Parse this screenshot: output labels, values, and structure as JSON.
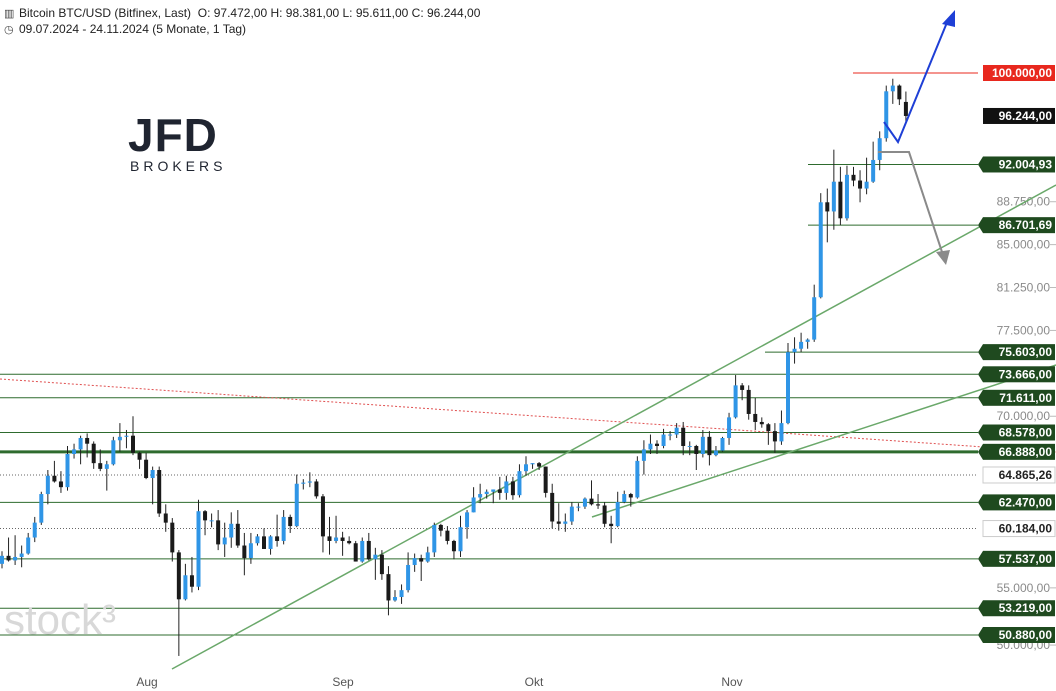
{
  "header": {
    "instrument": "Bitcoin BTC/USD (Bitfinex, Last)",
    "ohlc": "O: 97.472,00  H: 98.381,00  L: 95.611,00  C: 96.244,00",
    "period": "09.07.2024 - 24.11.2024  (5 Monate, 1 Tag)"
  },
  "logo": {
    "main": "JFD",
    "sub": "BROKERS"
  },
  "watermark": "stock³",
  "colors": {
    "up": "#2f95e6",
    "down": "#1a1a1a",
    "level": "#2e6b2e",
    "trendline": "#6aa86a",
    "resistance_dotted": "#e05050",
    "target_label": "#e8281e",
    "bullish_arrow": "#1e3fd6",
    "bearish_arrow": "#8a8a8a"
  },
  "chart_data": {
    "type": "candlestick",
    "title": "Bitcoin BTC/USD (Bitfinex, Last)",
    "x_range": [
      "09.07.2024",
      "24.11.2024"
    ],
    "xticks": [
      "Aug",
      "Sep",
      "Okt",
      "Nov"
    ],
    "ylim": [
      49500,
      110000
    ],
    "yticks": [
      {
        "value": 50000,
        "label": "50.000,00"
      },
      {
        "value": 55000,
        "label": "55.000,00"
      },
      {
        "value": 70000,
        "label": "70.000,00"
      },
      {
        "value": 77500,
        "label": "77.500,00"
      },
      {
        "value": 81250,
        "label": "81.250,00"
      },
      {
        "value": 85000,
        "label": "85.000,00"
      },
      {
        "value": 88750,
        "label": "88.750,00"
      }
    ],
    "levels": [
      {
        "value": 100000,
        "label": "100.000,00",
        "style": "target"
      },
      {
        "value": 96244,
        "label": "96.244,00",
        "style": "current"
      },
      {
        "value": 92004.93,
        "label": "92.004,93",
        "style": "solid"
      },
      {
        "value": 86701.69,
        "label": "86.701,69",
        "style": "solid"
      },
      {
        "value": 75603,
        "label": "75.603,00",
        "style": "solid"
      },
      {
        "value": 73666,
        "label": "73.666,00",
        "style": "solid"
      },
      {
        "value": 71611,
        "label": "71.611,00",
        "style": "solid"
      },
      {
        "value": 68578,
        "label": "68.578,00",
        "style": "solid"
      },
      {
        "value": 66888,
        "label": "66.888,00",
        "style": "thick"
      },
      {
        "value": 64865.26,
        "label": "64.865,26",
        "style": "dotted"
      },
      {
        "value": 62470,
        "label": "62.470,00",
        "style": "solid"
      },
      {
        "value": 60184,
        "label": "60.184,00",
        "style": "dotted"
      },
      {
        "value": 57537,
        "label": "57.537,00",
        "style": "solid"
      },
      {
        "value": 53219,
        "label": "53.219,00",
        "style": "solid"
      },
      {
        "value": 50880,
        "label": "50.880,00",
        "style": "solid"
      }
    ],
    "ohlc": [
      {
        "d": "09.07",
        "o": 57100,
        "h": 58200,
        "l": 56700,
        "c": 57800
      },
      {
        "d": "10.07",
        "o": 57800,
        "h": 59400,
        "l": 57300,
        "c": 57400
      },
      {
        "d": "11.07",
        "o": 57400,
        "h": 59600,
        "l": 57000,
        "c": 57700
      },
      {
        "d": "12.07",
        "o": 57700,
        "h": 58700,
        "l": 56800,
        "c": 58000
      },
      {
        "d": "13.07",
        "o": 58000,
        "h": 59800,
        "l": 57900,
        "c": 59400
      },
      {
        "d": "14.07",
        "o": 59400,
        "h": 61200,
        "l": 59000,
        "c": 60700
      },
      {
        "d": "15.07",
        "o": 60700,
        "h": 63400,
        "l": 60500,
        "c": 63200
      },
      {
        "d": "16.07",
        "o": 63200,
        "h": 65300,
        "l": 62300,
        "c": 64800
      },
      {
        "d": "17.07",
        "o": 64800,
        "h": 66100,
        "l": 64200,
        "c": 64300
      },
      {
        "d": "18.07",
        "o": 64300,
        "h": 65200,
        "l": 63300,
        "c": 63800
      },
      {
        "d": "19.07",
        "o": 63800,
        "h": 67400,
        "l": 63500,
        "c": 66700
      },
      {
        "d": "20.07",
        "o": 66700,
        "h": 67600,
        "l": 66300,
        "c": 67100
      },
      {
        "d": "21.07",
        "o": 67100,
        "h": 68300,
        "l": 65800,
        "c": 68100
      },
      {
        "d": "22.07",
        "o": 68100,
        "h": 68500,
        "l": 66400,
        "c": 67600
      },
      {
        "d": "23.07",
        "o": 67600,
        "h": 67800,
        "l": 65400,
        "c": 65900
      },
      {
        "d": "24.07",
        "o": 65900,
        "h": 67100,
        "l": 65200,
        "c": 65400
      },
      {
        "d": "25.07",
        "o": 65400,
        "h": 66100,
        "l": 63500,
        "c": 65800
      },
      {
        "d": "26.07",
        "o": 65800,
        "h": 68200,
        "l": 65700,
        "c": 67900
      },
      {
        "d": "27.07",
        "o": 67900,
        "h": 69400,
        "l": 66900,
        "c": 68200
      },
      {
        "d": "28.07",
        "o": 68200,
        "h": 68800,
        "l": 67200,
        "c": 68300
      },
      {
        "d": "29.07",
        "o": 68300,
        "h": 70000,
        "l": 66600,
        "c": 66800
      },
      {
        "d": "30.07",
        "o": 66800,
        "h": 66900,
        "l": 65400,
        "c": 66200
      },
      {
        "d": "31.07",
        "o": 66200,
        "h": 66800,
        "l": 64500,
        "c": 64600
      },
      {
        "d": "01.08",
        "o": 64600,
        "h": 65600,
        "l": 62300,
        "c": 65300
      },
      {
        "d": "02.08",
        "o": 65300,
        "h": 65600,
        "l": 61200,
        "c": 61500
      },
      {
        "d": "03.08",
        "o": 61500,
        "h": 62300,
        "l": 59900,
        "c": 60700
      },
      {
        "d": "04.08",
        "o": 60700,
        "h": 61100,
        "l": 57300,
        "c": 58100
      },
      {
        "d": "05.08",
        "o": 58100,
        "h": 58300,
        "l": 49050,
        "c": 54000
      },
      {
        "d": "06.08",
        "o": 54000,
        "h": 57100,
        "l": 53900,
        "c": 56100
      },
      {
        "d": "07.08",
        "o": 56100,
        "h": 57700,
        "l": 54600,
        "c": 55100
      },
      {
        "d": "08.08",
        "o": 55100,
        "h": 62700,
        "l": 54800,
        "c": 61700
      },
      {
        "d": "09.08",
        "o": 61700,
        "h": 61800,
        "l": 59600,
        "c": 60900
      },
      {
        "d": "10.08",
        "o": 60900,
        "h": 61500,
        "l": 60300,
        "c": 60900
      },
      {
        "d": "11.08",
        "o": 60900,
        "h": 61800,
        "l": 58300,
        "c": 58800
      },
      {
        "d": "12.08",
        "o": 58800,
        "h": 60700,
        "l": 57700,
        "c": 59400
      },
      {
        "d": "13.08",
        "o": 59400,
        "h": 61600,
        "l": 58500,
        "c": 60600
      },
      {
        "d": "14.08",
        "o": 60600,
        "h": 61800,
        "l": 58500,
        "c": 58700
      },
      {
        "d": "15.08",
        "o": 58700,
        "h": 59800,
        "l": 56100,
        "c": 57600
      },
      {
        "d": "16.08",
        "o": 57600,
        "h": 59800,
        "l": 57100,
        "c": 58900
      },
      {
        "d": "17.08",
        "o": 58900,
        "h": 59700,
        "l": 58700,
        "c": 59500
      },
      {
        "d": "18.08",
        "o": 59500,
        "h": 60200,
        "l": 58400,
        "c": 58400
      },
      {
        "d": "19.08",
        "o": 58400,
        "h": 59600,
        "l": 57900,
        "c": 59500
      },
      {
        "d": "20.08",
        "o": 59500,
        "h": 61400,
        "l": 58600,
        "c": 59100
      },
      {
        "d": "21.08",
        "o": 59100,
        "h": 61800,
        "l": 58800,
        "c": 61200
      },
      {
        "d": "22.08",
        "o": 61200,
        "h": 61400,
        "l": 59800,
        "c": 60400
      },
      {
        "d": "23.08",
        "o": 60400,
        "h": 64900,
        "l": 60300,
        "c": 64100
      },
      {
        "d": "24.08",
        "o": 64100,
        "h": 64500,
        "l": 63600,
        "c": 64200
      },
      {
        "d": "25.08",
        "o": 64200,
        "h": 65100,
        "l": 63800,
        "c": 64300
      },
      {
        "d": "26.08",
        "o": 64300,
        "h": 64500,
        "l": 62800,
        "c": 63000
      },
      {
        "d": "27.08",
        "o": 63000,
        "h": 63200,
        "l": 58100,
        "c": 59500
      },
      {
        "d": "28.08",
        "o": 59500,
        "h": 61200,
        "l": 57900,
        "c": 59100
      },
      {
        "d": "29.08",
        "o": 59100,
        "h": 61300,
        "l": 58900,
        "c": 59400
      },
      {
        "d": "30.08",
        "o": 59400,
        "h": 59900,
        "l": 57800,
        "c": 59100
      },
      {
        "d": "31.08",
        "o": 59100,
        "h": 59500,
        "l": 58800,
        "c": 58900
      },
      {
        "d": "01.09",
        "o": 58900,
        "h": 59100,
        "l": 57300,
        "c": 57300
      },
      {
        "d": "02.09",
        "o": 57300,
        "h": 59400,
        "l": 57200,
        "c": 59100
      },
      {
        "d": "03.09",
        "o": 59100,
        "h": 59800,
        "l": 57400,
        "c": 57500
      },
      {
        "d": "04.09",
        "o": 57500,
        "h": 58500,
        "l": 55700,
        "c": 57900
      },
      {
        "d": "05.09",
        "o": 57900,
        "h": 58300,
        "l": 55700,
        "c": 56200
      },
      {
        "d": "06.09",
        "o": 56200,
        "h": 56900,
        "l": 52600,
        "c": 53900
      },
      {
        "d": "07.09",
        "o": 53900,
        "h": 54800,
        "l": 53800,
        "c": 54200
      },
      {
        "d": "08.09",
        "o": 54200,
        "h": 55300,
        "l": 53600,
        "c": 54800
      },
      {
        "d": "09.09",
        "o": 54800,
        "h": 58100,
        "l": 54600,
        "c": 57000
      },
      {
        "d": "10.09",
        "o": 57000,
        "h": 58000,
        "l": 56400,
        "c": 57600
      },
      {
        "d": "11.09",
        "o": 57600,
        "h": 57900,
        "l": 55600,
        "c": 57300
      },
      {
        "d": "12.09",
        "o": 57300,
        "h": 58600,
        "l": 57200,
        "c": 58100
      },
      {
        "d": "13.09",
        "o": 58100,
        "h": 60700,
        "l": 57700,
        "c": 60500
      },
      {
        "d": "14.09",
        "o": 60500,
        "h": 60600,
        "l": 59500,
        "c": 60000
      },
      {
        "d": "15.09",
        "o": 60000,
        "h": 60400,
        "l": 58800,
        "c": 59100
      },
      {
        "d": "16.09",
        "o": 59100,
        "h": 59200,
        "l": 57500,
        "c": 58200
      },
      {
        "d": "17.09",
        "o": 58200,
        "h": 61300,
        "l": 57700,
        "c": 60300
      },
      {
        "d": "18.09",
        "o": 60300,
        "h": 61800,
        "l": 59300,
        "c": 61600
      },
      {
        "d": "19.09",
        "o": 61600,
        "h": 63800,
        "l": 61600,
        "c": 62900
      },
      {
        "d": "20.09",
        "o": 62900,
        "h": 64100,
        "l": 62400,
        "c": 63200
      },
      {
        "d": "21.09",
        "o": 63200,
        "h": 63600,
        "l": 62800,
        "c": 63400
      },
      {
        "d": "22.09",
        "o": 63400,
        "h": 63600,
        "l": 62400,
        "c": 63600
      },
      {
        "d": "23.09",
        "o": 63600,
        "h": 64700,
        "l": 62700,
        "c": 63300
      },
      {
        "d": "24.09",
        "o": 63300,
        "h": 64800,
        "l": 62700,
        "c": 64300
      },
      {
        "d": "25.09",
        "o": 64300,
        "h": 64700,
        "l": 62700,
        "c": 63100
      },
      {
        "d": "26.09",
        "o": 63100,
        "h": 65800,
        "l": 62900,
        "c": 65200
      },
      {
        "d": "27.09",
        "o": 65200,
        "h": 66500,
        "l": 64800,
        "c": 65800
      },
      {
        "d": "28.09",
        "o": 65800,
        "h": 65900,
        "l": 65400,
        "c": 65900
      },
      {
        "d": "29.09",
        "o": 65900,
        "h": 66000,
        "l": 65300,
        "c": 65600
      },
      {
        "d": "30.09",
        "o": 65600,
        "h": 65600,
        "l": 62900,
        "c": 63300
      },
      {
        "d": "01.10",
        "o": 63300,
        "h": 64100,
        "l": 60200,
        "c": 60800
      },
      {
        "d": "02.10",
        "o": 60800,
        "h": 62400,
        "l": 60000,
        "c": 60600
      },
      {
        "d": "03.10",
        "o": 60600,
        "h": 61500,
        "l": 59900,
        "c": 60800
      },
      {
        "d": "04.10",
        "o": 60800,
        "h": 62500,
        "l": 60500,
        "c": 62100
      },
      {
        "d": "05.10",
        "o": 62100,
        "h": 62400,
        "l": 61700,
        "c": 62100
      },
      {
        "d": "06.10",
        "o": 62100,
        "h": 62900,
        "l": 61900,
        "c": 62800
      },
      {
        "d": "07.10",
        "o": 62800,
        "h": 64400,
        "l": 62200,
        "c": 62300
      },
      {
        "d": "08.10",
        "o": 62300,
        "h": 63200,
        "l": 61900,
        "c": 62200
      },
      {
        "d": "09.10",
        "o": 62200,
        "h": 62500,
        "l": 60300,
        "c": 60600
      },
      {
        "d": "10.10",
        "o": 60600,
        "h": 61300,
        "l": 58900,
        "c": 60400
      },
      {
        "d": "11.10",
        "o": 60400,
        "h": 63400,
        "l": 60300,
        "c": 62500
      },
      {
        "d": "12.10",
        "o": 62500,
        "h": 63500,
        "l": 62400,
        "c": 63200
      },
      {
        "d": "13.10",
        "o": 63200,
        "h": 63300,
        "l": 62100,
        "c": 62900
      },
      {
        "d": "14.10",
        "o": 62900,
        "h": 66500,
        "l": 62800,
        "c": 66100
      },
      {
        "d": "15.10",
        "o": 66100,
        "h": 67900,
        "l": 64900,
        "c": 67100
      },
      {
        "d": "16.10",
        "o": 67100,
        "h": 68400,
        "l": 66700,
        "c": 67600
      },
      {
        "d": "17.10",
        "o": 67600,
        "h": 67900,
        "l": 66700,
        "c": 67400
      },
      {
        "d": "18.10",
        "o": 67400,
        "h": 68900,
        "l": 67200,
        "c": 68400
      },
      {
        "d": "19.10",
        "o": 68400,
        "h": 68700,
        "l": 67900,
        "c": 68400
      },
      {
        "d": "20.10",
        "o": 68400,
        "h": 69400,
        "l": 68100,
        "c": 69000
      },
      {
        "d": "21.10",
        "o": 69000,
        "h": 69500,
        "l": 66600,
        "c": 67400
      },
      {
        "d": "22.10",
        "o": 67400,
        "h": 67800,
        "l": 66600,
        "c": 67400
      },
      {
        "d": "23.10",
        "o": 67400,
        "h": 67500,
        "l": 65300,
        "c": 66700
      },
      {
        "d": "24.10",
        "o": 66700,
        "h": 68800,
        "l": 66400,
        "c": 68200
      },
      {
        "d": "25.10",
        "o": 68200,
        "h": 68700,
        "l": 65700,
        "c": 66600
      },
      {
        "d": "26.10",
        "o": 66600,
        "h": 67400,
        "l": 66500,
        "c": 67000
      },
      {
        "d": "27.10",
        "o": 67000,
        "h": 68200,
        "l": 66900,
        "c": 68100
      },
      {
        "d": "28.10",
        "o": 68100,
        "h": 70300,
        "l": 67500,
        "c": 69900
      },
      {
        "d": "29.10",
        "o": 69900,
        "h": 73600,
        "l": 69800,
        "c": 72700
      },
      {
        "d": "30.10",
        "o": 72700,
        "h": 72900,
        "l": 71400,
        "c": 72300
      },
      {
        "d": "31.10",
        "o": 72300,
        "h": 72700,
        "l": 69700,
        "c": 70200
      },
      {
        "d": "01.11",
        "o": 70200,
        "h": 71600,
        "l": 68800,
        "c": 69500
      },
      {
        "d": "02.11",
        "o": 69500,
        "h": 69900,
        "l": 69000,
        "c": 69300
      },
      {
        "d": "03.11",
        "o": 69300,
        "h": 69400,
        "l": 67500,
        "c": 68700
      },
      {
        "d": "04.11",
        "o": 68700,
        "h": 69400,
        "l": 66800,
        "c": 67800
      },
      {
        "d": "05.11",
        "o": 67800,
        "h": 70500,
        "l": 67500,
        "c": 69400
      },
      {
        "d": "06.11",
        "o": 69400,
        "h": 76400,
        "l": 69300,
        "c": 75600
      },
      {
        "d": "07.11",
        "o": 75600,
        "h": 76900,
        "l": 74600,
        "c": 75900
      },
      {
        "d": "08.11",
        "o": 75900,
        "h": 77300,
        "l": 75600,
        "c": 76500
      },
      {
        "d": "09.11",
        "o": 76500,
        "h": 76800,
        "l": 75900,
        "c": 76700
      },
      {
        "d": "10.11",
        "o": 76700,
        "h": 81500,
        "l": 76500,
        "c": 80400
      },
      {
        "d": "11.11",
        "o": 80400,
        "h": 89500,
        "l": 80300,
        "c": 88700
      },
      {
        "d": "12.11",
        "o": 88700,
        "h": 89900,
        "l": 85200,
        "c": 87900
      },
      {
        "d": "13.11",
        "o": 87900,
        "h": 93300,
        "l": 86300,
        "c": 90500
      },
      {
        "d": "14.11",
        "o": 90500,
        "h": 91800,
        "l": 86700,
        "c": 87300
      },
      {
        "d": "15.11",
        "o": 87300,
        "h": 91900,
        "l": 87100,
        "c": 91100
      },
      {
        "d": "16.11",
        "o": 91100,
        "h": 91800,
        "l": 90100,
        "c": 90600
      },
      {
        "d": "17.11",
        "o": 90600,
        "h": 91500,
        "l": 88700,
        "c": 89900
      },
      {
        "d": "18.11",
        "o": 89900,
        "h": 92600,
        "l": 89400,
        "c": 90500
      },
      {
        "d": "19.11",
        "o": 90500,
        "h": 94000,
        "l": 90400,
        "c": 92400
      },
      {
        "d": "20.11",
        "o": 92400,
        "h": 94900,
        "l": 91500,
        "c": 94300
      },
      {
        "d": "21.11",
        "o": 94300,
        "h": 98900,
        "l": 94000,
        "c": 98400
      },
      {
        "d": "22.11",
        "o": 98400,
        "h": 99500,
        "l": 97300,
        "c": 98900
      },
      {
        "d": "23.11",
        "o": 98900,
        "h": 99000,
        "l": 97200,
        "c": 97700
      },
      {
        "d": "24.11",
        "o": 97472,
        "h": 98381,
        "l": 95611,
        "c": 96244
      }
    ]
  }
}
